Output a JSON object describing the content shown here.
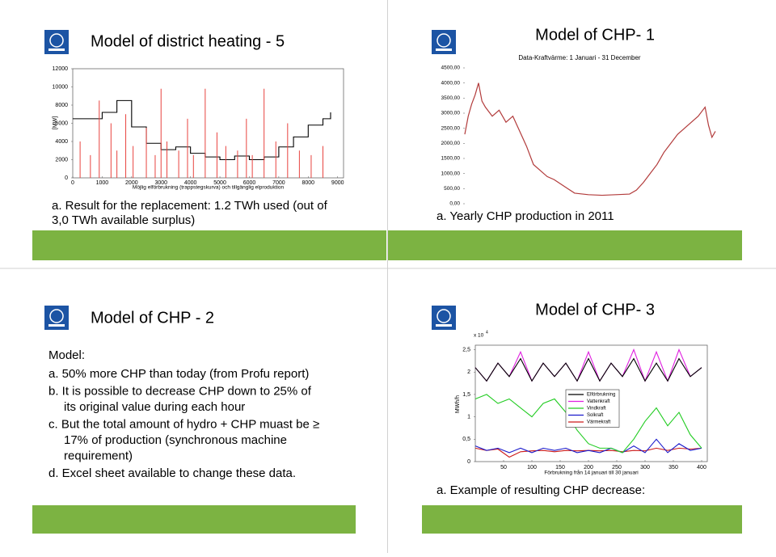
{
  "slides": [
    {
      "title": "Model of district heating - 5",
      "caption": [
        "a. Result for the replacement: 1.2 TWh used (out of",
        "3,0 TWh available surplus)"
      ]
    },
    {
      "title": "Model of CHP- 1",
      "caption": [
        "a. Yearly CHP production in 2011"
      ]
    },
    {
      "title": "Model of CHP - 2",
      "heading": "Model:",
      "items": [
        [
          "a. 50% more CHP than today (from Profu report)"
        ],
        [
          "b. It is possible to decrease CHP down to 25% of",
          "its original value during each hour"
        ],
        [
          "c. But the total amount of hydro + CHP muast be ≥",
          "17% of production (synchronous machine",
          "requirement)"
        ],
        [
          "d. Excel sheet available to change these data."
        ]
      ]
    },
    {
      "title": "Model of CHP- 3",
      "caption": [
        "a. Example of resulting CHP decrease:"
      ]
    }
  ],
  "chart_data": [
    {
      "type": "line",
      "frame": true,
      "x_label": "Möjlig elförbrukning (trappstegskurva) och tillgänglig elproduktion",
      "y_label": "[MW]",
      "xlim": [
        0,
        9200
      ],
      "ylim": [
        0,
        12000
      ],
      "xticks": [
        0,
        1000,
        2000,
        3000,
        4000,
        5000,
        6000,
        7000,
        8000,
        9000
      ],
      "yticks": [
        0,
        2000,
        4000,
        6000,
        8000,
        10000,
        12000
      ],
      "series": [
        {
          "color": "#e8433f",
          "style": "spikes",
          "x": [
            250,
            600,
            900,
            1300,
            1500,
            1800,
            2050,
            2500,
            2800,
            3000,
            3200,
            3600,
            3900,
            4100,
            4500,
            4900,
            5200,
            5600,
            5900,
            6100,
            6500,
            6900,
            7300,
            7700,
            8100,
            8500
          ],
          "values": [
            4000,
            2500,
            8500,
            6000,
            3000,
            7000,
            3500,
            5500,
            2500,
            9800,
            4000,
            3000,
            6500,
            2500,
            9800,
            5000,
            3500,
            3000,
            6500,
            2500,
            9800,
            4000,
            6000,
            3000,
            2500,
            3500
          ]
        },
        {
          "color": "#000000",
          "style": "step",
          "x": [
            0,
            500,
            1000,
            1500,
            2000,
            2500,
            3000,
            3500,
            4000,
            4500,
            5000,
            5500,
            6000,
            6500,
            7000,
            7500,
            8000,
            8500,
            8760
          ],
          "values": [
            6500,
            6500,
            7200,
            8500,
            5600,
            3800,
            3100,
            3400,
            2700,
            2300,
            2000,
            2400,
            2000,
            2300,
            3400,
            4500,
            5800,
            6500,
            7200
          ]
        }
      ]
    },
    {
      "type": "line",
      "frame": false,
      "title": "Data-Kraftvärme: 1 Januari - 31 December",
      "xlim": [
        0,
        365
      ],
      "ylim": [
        0,
        4500
      ],
      "yticks": [
        {
          "value": 0,
          "label": "0,00"
        },
        {
          "value": 500,
          "label": "500,00"
        },
        {
          "value": 1000,
          "label": "1000,00"
        },
        {
          "value": 1500,
          "label": "1500,00"
        },
        {
          "value": 2000,
          "label": "2000,00"
        },
        {
          "value": 2500,
          "label": "2500,00"
        },
        {
          "value": 3000,
          "label": "3000,00"
        },
        {
          "value": 3500,
          "label": "3500,00"
        },
        {
          "value": 4000,
          "label": "4000,00"
        },
        {
          "value": 4500,
          "label": "4500,00"
        }
      ],
      "series": [
        {
          "color": "#b23b3b",
          "style": "line",
          "x": [
            0,
            5,
            10,
            15,
            20,
            25,
            30,
            40,
            50,
            60,
            70,
            80,
            90,
            100,
            110,
            120,
            130,
            140,
            150,
            160,
            180,
            200,
            220,
            240,
            250,
            260,
            270,
            280,
            290,
            300,
            310,
            320,
            330,
            340,
            350,
            355,
            360,
            365
          ],
          "values": [
            2300,
            2900,
            3300,
            3600,
            4000,
            3400,
            3200,
            2900,
            3100,
            2700,
            2900,
            2400,
            1900,
            1300,
            1100,
            900,
            800,
            650,
            500,
            350,
            300,
            280,
            300,
            320,
            450,
            700,
            1000,
            1300,
            1700,
            2000,
            2300,
            2500,
            2700,
            2900,
            3200,
            2600,
            2200,
            2400
          ]
        }
      ]
    },
    {
      "type": "line",
      "frame": true,
      "x_label": "Förbrukning från 14 januari till 30 januari",
      "y_label": "MWh/h",
      "multiplier": {
        "base": "x 10",
        "exponent": "4"
      },
      "legend": "center",
      "xlim": [
        0,
        410
      ],
      "ylim": [
        0,
        2.6
      ],
      "xticks": [
        50,
        100,
        150,
        200,
        250,
        300,
        350,
        400
      ],
      "yticks": [
        0,
        {
          "value": 0.5,
          "label": "0,5"
        },
        1,
        {
          "value": 1.5,
          "label": "1,5"
        },
        2,
        {
          "value": 2.5,
          "label": "2,5"
        }
      ],
      "series": [
        {
          "name": "Elförbrukning",
          "color": "#000000",
          "style": "line",
          "x": [
            0,
            20,
            40,
            60,
            80,
            100,
            120,
            140,
            160,
            180,
            200,
            220,
            240,
            260,
            280,
            300,
            320,
            340,
            360,
            380,
            400
          ],
          "values": [
            2.1,
            1.8,
            2.2,
            1.9,
            2.3,
            1.8,
            2.2,
            1.9,
            2.2,
            1.8,
            2.3,
            1.8,
            2.2,
            1.9,
            2.3,
            1.8,
            2.2,
            1.8,
            2.3,
            1.9,
            2.1
          ]
        },
        {
          "name": "Vattenkraft",
          "color": "#e020e0",
          "style": "line",
          "x": [
            0,
            20,
            40,
            60,
            80,
            100,
            120,
            140,
            160,
            180,
            200,
            220,
            240,
            260,
            280,
            300,
            320,
            340,
            360,
            380,
            400
          ],
          "values": [
            2.1,
            1.8,
            2.2,
            1.9,
            2.45,
            1.8,
            2.2,
            1.9,
            2.2,
            1.8,
            2.45,
            1.8,
            2.2,
            1.9,
            2.5,
            1.8,
            2.45,
            1.8,
            2.5,
            1.9,
            2.1
          ]
        },
        {
          "name": "Vindkraft",
          "color": "#22cc22",
          "style": "line",
          "x": [
            0,
            20,
            40,
            60,
            80,
            100,
            120,
            140,
            160,
            180,
            200,
            220,
            240,
            260,
            280,
            300,
            320,
            340,
            360,
            380,
            400
          ],
          "values": [
            1.4,
            1.5,
            1.3,
            1.4,
            1.2,
            1.0,
            1.3,
            1.4,
            1.1,
            0.7,
            0.4,
            0.3,
            0.3,
            0.2,
            0.5,
            0.9,
            1.2,
            0.8,
            1.1,
            0.6,
            0.3
          ]
        },
        {
          "name": "Solkraft",
          "color": "#1a1acc",
          "style": "line",
          "x": [
            0,
            20,
            40,
            60,
            80,
            100,
            120,
            140,
            160,
            180,
            200,
            220,
            240,
            260,
            280,
            300,
            320,
            340,
            360,
            380,
            400
          ],
          "values": [
            0.35,
            0.25,
            0.3,
            0.2,
            0.3,
            0.2,
            0.3,
            0.25,
            0.3,
            0.2,
            0.25,
            0.2,
            0.3,
            0.2,
            0.35,
            0.2,
            0.5,
            0.2,
            0.4,
            0.25,
            0.3
          ]
        },
        {
          "name": "Värmekraft",
          "color": "#cc1a1a",
          "style": "line",
          "x": [
            0,
            20,
            40,
            60,
            80,
            100,
            120,
            140,
            160,
            180,
            200,
            220,
            240,
            260,
            280,
            300,
            320,
            340,
            360,
            380,
            400
          ],
          "values": [
            0.3,
            0.25,
            0.28,
            0.1,
            0.22,
            0.24,
            0.25,
            0.22,
            0.25,
            0.24,
            0.25,
            0.24,
            0.25,
            0.22,
            0.25,
            0.24,
            0.3,
            0.25,
            0.3,
            0.28,
            0.3
          ]
        }
      ]
    }
  ]
}
